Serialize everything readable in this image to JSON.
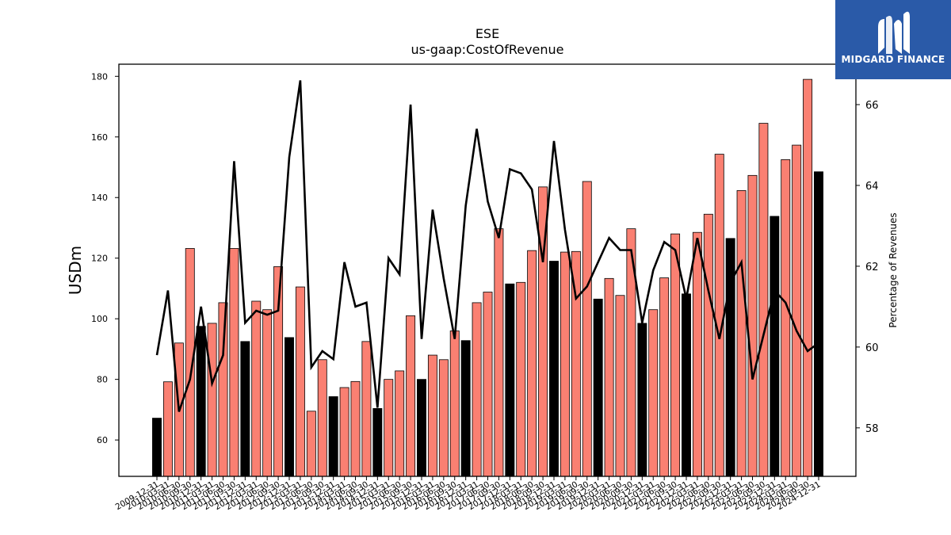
{
  "logo": {
    "text": "MIDGARD FINANCE"
  },
  "chart_data": {
    "type": "bar",
    "title": "ESE",
    "subtitle": "us-gaap:CostOfRevenue",
    "ylabel": "USDm",
    "y2label": "Percentage of Revenues",
    "ylim": [
      48,
      184
    ],
    "y2lim": [
      56.8,
      67.0
    ],
    "yticks": [
      60,
      80,
      100,
      120,
      140,
      160,
      180
    ],
    "y2ticks": [
      58,
      60,
      62,
      64,
      66
    ],
    "colors": {
      "quarter_bar": "#fa8072",
      "annual_bar": "#000000",
      "line": "#000000"
    },
    "categories": [
      "2009-12-31",
      "2010-03-31",
      "2010-06-30",
      "2010-09-30",
      "2010-12-31",
      "2011-03-31",
      "2011-06-30",
      "2011-09-30",
      "2011-12-31",
      "2012-03-31",
      "2012-06-30",
      "2012-09-30",
      "2012-12-31",
      "2013-03-31",
      "2013-06-30",
      "2013-09-30",
      "2013-12-31",
      "2014-03-31",
      "2014-06-30",
      "2014-09-30",
      "2014-12-31",
      "2015-03-31",
      "2015-06-30",
      "2015-09-30",
      "2015-12-31",
      "2016-03-31",
      "2016-06-30",
      "2016-09-30",
      "2016-12-31",
      "2017-03-31",
      "2017-06-30",
      "2017-09-30",
      "2017-12-31",
      "2018-03-31",
      "2018-06-30",
      "2018-09-30",
      "2018-12-31",
      "2019-03-31",
      "2019-06-30",
      "2019-09-30",
      "2019-12-31",
      "2020-03-31",
      "2020-06-30",
      "2020-09-30",
      "2020-12-31",
      "2021-03-31",
      "2021-06-30",
      "2021-09-30",
      "2021-12-31",
      "2022-03-31",
      "2022-06-30",
      "2022-09-30",
      "2022-12-31",
      "2023-03-31",
      "2023-06-30",
      "2023-09-30",
      "2023-12-31",
      "2024-03-31",
      "2024-06-30",
      "2024-09-30",
      "2024-12-31"
    ],
    "series": [
      {
        "kind": "bar",
        "values": [
          67.2,
          79.2,
          92,
          123.2,
          97.5,
          98.5,
          105.3,
          123.2,
          92.5,
          105.8,
          103,
          117.2,
          93.8,
          110.5,
          69.5,
          86.5,
          74.3,
          77.3,
          79.3,
          92.5,
          70.4,
          80,
          82.8,
          101,
          80,
          88,
          86.5,
          96,
          92.8,
          105.3,
          108.8,
          129.7,
          111.5,
          112,
          122.5,
          143.5,
          119,
          122,
          122.2,
          145.3,
          106.5,
          113.3,
          107.7,
          129.7,
          98.5,
          103,
          113.5,
          128,
          108.2,
          128.5,
          134.5,
          154.3,
          126.5,
          142.3,
          147.3,
          164.5,
          133.8,
          152.5,
          157.3,
          179,
          148.5
        ],
        "annual": [
          true,
          false,
          false,
          false,
          true,
          false,
          false,
          false,
          true,
          false,
          false,
          false,
          true,
          false,
          false,
          false,
          true,
          false,
          false,
          false,
          true,
          false,
          false,
          false,
          true,
          false,
          false,
          false,
          true,
          false,
          false,
          false,
          true,
          false,
          false,
          false,
          true,
          false,
          false,
          false,
          true,
          false,
          false,
          false,
          true,
          false,
          false,
          false,
          true,
          false,
          false,
          false,
          true,
          false,
          false,
          false,
          true,
          false,
          false,
          false,
          true
        ]
      },
      {
        "kind": "line",
        "values": [
          59.8,
          61.4,
          58.4,
          59.2,
          61,
          59.1,
          59.8,
          64.6,
          60.6,
          60.9,
          60.8,
          60.9,
          64.7,
          66.6,
          59.5,
          59.9,
          59.7,
          62.1,
          61,
          61.1,
          58.5,
          62.2,
          61.8,
          66,
          60.2,
          63.4,
          61.7,
          60.2,
          63.5,
          65.4,
          63.6,
          62.7,
          64.4,
          64.3,
          63.9,
          62.1,
          65.1,
          62.9,
          61.2,
          61.5,
          62.1,
          62.7,
          62.4,
          62.4,
          60.6,
          61.9,
          62.6,
          62.4,
          61.2,
          62.7,
          61.4,
          60.2,
          61.6,
          62.1,
          59.2,
          60.3,
          61.4,
          61.1,
          60.4,
          59.9,
          60.1
        ]
      }
    ]
  }
}
